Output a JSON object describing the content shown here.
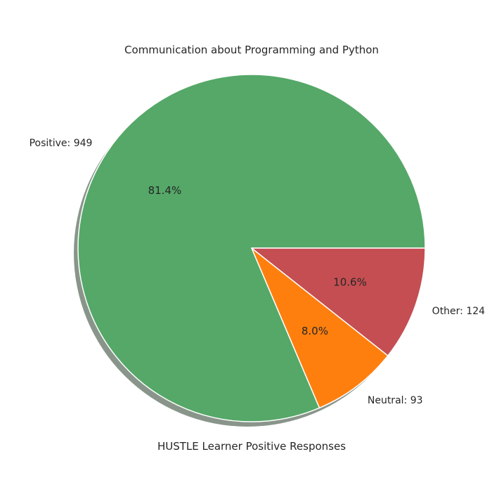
{
  "chart_data": {
    "type": "pie",
    "title": "Communication about Programming and Python",
    "xlabel": "HUSTLE Learner Positive Responses",
    "slices": [
      {
        "label": "Positive: 949",
        "value": 949,
        "pct_label": "81.4%",
        "color": "#55a868"
      },
      {
        "label": "Neutral: 93",
        "value": 93,
        "pct_label": "8.0%",
        "color": "#ff7f0e"
      },
      {
        "label": "Other: 124",
        "value": 124,
        "pct_label": "10.6%",
        "color": "#c44e52"
      }
    ],
    "start_angle_deg": 0,
    "direction": "counterclockwise",
    "shadow": true,
    "edge_color": "#ffffff"
  }
}
